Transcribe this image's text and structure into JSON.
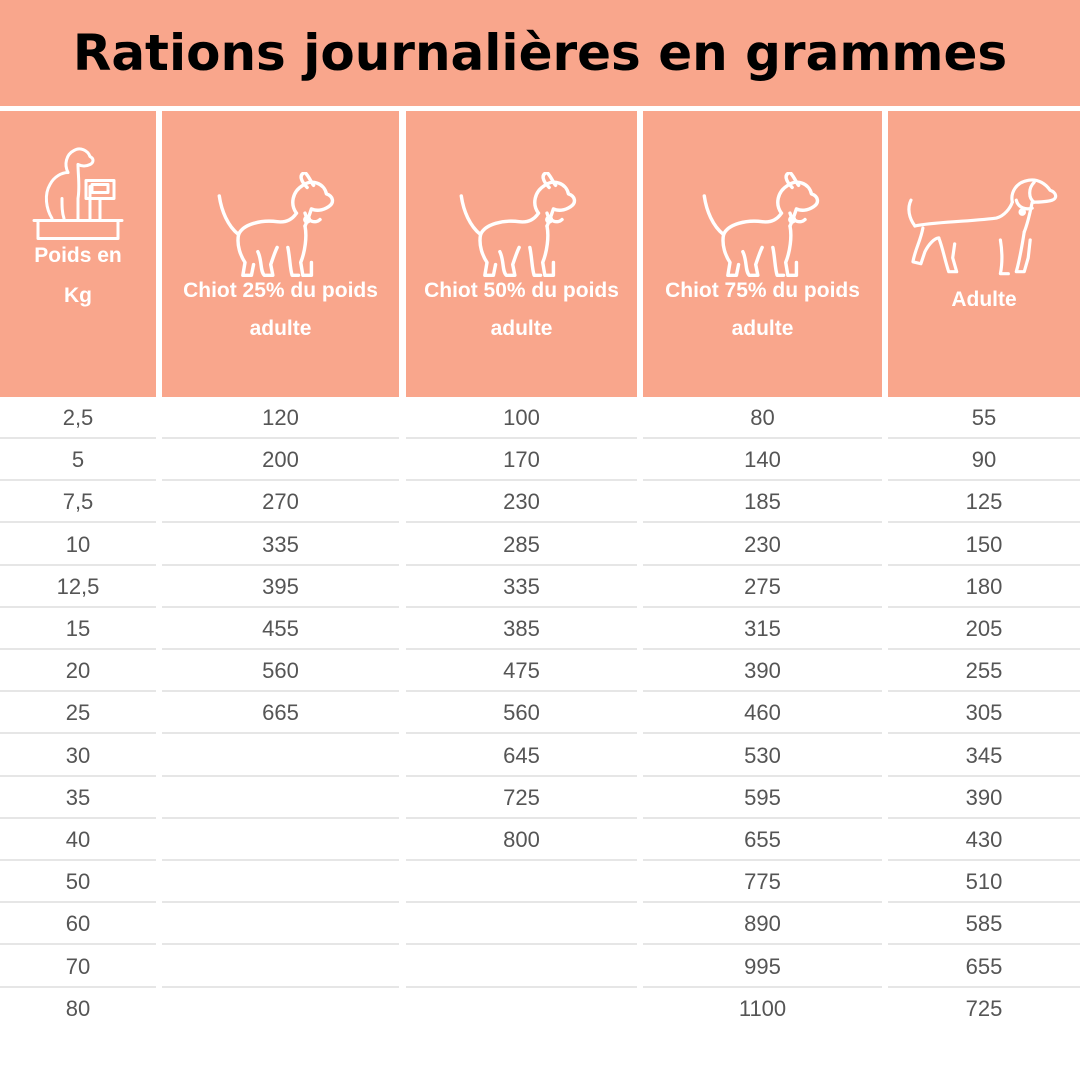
{
  "title": "Rations journalières en grammes",
  "colors": {
    "header_bg": "#f9a68c",
    "title_text": "#000000",
    "header_text": "#ffffff",
    "cell_text": "#555555",
    "row_line": "#e6e6e6"
  },
  "columns": [
    {
      "label_lines": [
        "Poids en",
        "Kg"
      ],
      "icon": "dog-on-scale-icon"
    },
    {
      "label_lines": [
        "Chiot 25% du poids",
        "adulte"
      ],
      "icon": "puppy-icon"
    },
    {
      "label_lines": [
        "Chiot 50% du poids",
        "adulte"
      ],
      "icon": "puppy-icon"
    },
    {
      "label_lines": [
        "Chiot 75% du poids",
        "adulte"
      ],
      "icon": "puppy-icon"
    },
    {
      "label_lines": [
        "Adulte"
      ],
      "icon": "adult-dog-icon"
    }
  ],
  "rows": [
    [
      "2,5",
      "120",
      "100",
      "80",
      "55"
    ],
    [
      "5",
      "200",
      "170",
      "140",
      "90"
    ],
    [
      "7,5",
      "270",
      "230",
      "185",
      "125"
    ],
    [
      "10",
      "335",
      "285",
      "230",
      "150"
    ],
    [
      "12,5",
      "395",
      "335",
      "275",
      "180"
    ],
    [
      "15",
      "455",
      "385",
      "315",
      "205"
    ],
    [
      "20",
      "560",
      "475",
      "390",
      "255"
    ],
    [
      "25",
      "665",
      "560",
      "460",
      "305"
    ],
    [
      "30",
      "",
      "645",
      "530",
      "345"
    ],
    [
      "35",
      "",
      "725",
      "595",
      "390"
    ],
    [
      "40",
      "",
      "800",
      "655",
      "430"
    ],
    [
      "50",
      "",
      "",
      "775",
      "510"
    ],
    [
      "60",
      "",
      "",
      "890",
      "585"
    ],
    [
      "70",
      "",
      "",
      "995",
      "655"
    ],
    [
      "80",
      "",
      "",
      "1100",
      "725"
    ]
  ]
}
